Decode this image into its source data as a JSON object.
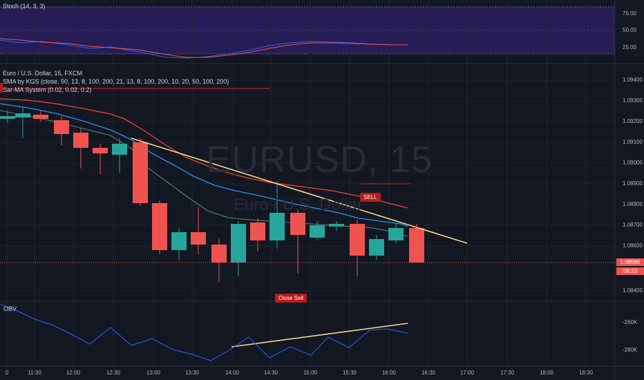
{
  "stoch": {
    "title": "Stoch (14, 3, 3)",
    "levels": [
      "75.00",
      "50.00",
      "25.00"
    ]
  },
  "price": {
    "legend": [
      "Euro / U.S. Dollar, 15, FXCM",
      "SMA by KGS (close, 50, 13, 8, 100, 200, 21, 13, 8, 100, 200, 10, 20, 50, 100, 200)",
      "Sar-MA System (0.02, 0.02, 0.2)"
    ],
    "watermark_symbol": "EURUSD, 15",
    "watermark_name": "Euro / U.S. Dollar",
    "levels": [
      "1.09400",
      "1.09300",
      "1.09200",
      "1.09100",
      "1.09000",
      "1.08900",
      "1.08800",
      "1.08700",
      "1.08600",
      "1.08400"
    ],
    "last_price": "1.08586",
    "countdown": "08:23",
    "signals": {
      "sell": "SELL",
      "close_sell": "Close Sell"
    }
  },
  "obv": {
    "title": "OBV",
    "levels": [
      "-260K",
      "-280K"
    ]
  },
  "time_axis": [
    "0",
    "11:30",
    "12:00",
    "12:30",
    "13:00",
    "13:30",
    "14:00",
    "14:30",
    "15:00",
    "15:30",
    "16:00",
    "16:30",
    "17:00",
    "17:30",
    "18:00",
    "18:30"
  ],
  "colors": {
    "bg": "#131722",
    "bull": "#26a69a",
    "bear": "#ef5350",
    "trend": "#f5d78e",
    "stoch_fill": "#2a1e5c"
  }
}
